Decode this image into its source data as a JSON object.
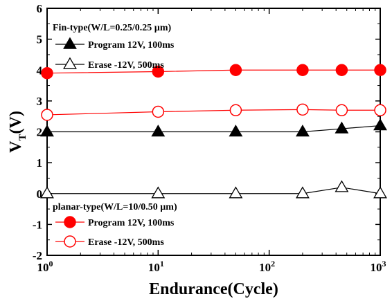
{
  "chart_data": {
    "type": "scatter",
    "xlabel": "Endurance(Cycle)",
    "ylabel_main": "V",
    "ylabel_sub": "T",
    "ylabel_tail": "(V)",
    "x_scale": "log",
    "xlim": [
      1,
      1000
    ],
    "ylim": [
      -2,
      6
    ],
    "x_ticks": [
      {
        "value": 1,
        "base": "10",
        "exp": "0"
      },
      {
        "value": 10,
        "base": "10",
        "exp": "1"
      },
      {
        "value": 100,
        "base": "10",
        "exp": "2"
      },
      {
        "value": 1000,
        "base": "10",
        "exp": "3"
      }
    ],
    "y_ticks": [
      -2,
      -1,
      0,
      1,
      2,
      3,
      4,
      5,
      6
    ],
    "grid": false,
    "legend_groups": [
      {
        "title": "Fin-type(W/L=0.25/0.25 µm)",
        "placement": "top-left"
      },
      {
        "title": "planar-type(W/L=10/0.50 µm)",
        "placement": "bottom-left"
      }
    ],
    "series": [
      {
        "name": "Program 12V, 100ms",
        "group": 0,
        "marker": "triangle",
        "filled": true,
        "color": "#000000",
        "x": [
          1,
          10,
          50,
          200,
          450,
          1000
        ],
        "y": [
          2.0,
          2.0,
          2.0,
          2.0,
          2.1,
          2.2
        ]
      },
      {
        "name": "Erase -12V, 500ms",
        "group": 0,
        "marker": "triangle",
        "filled": false,
        "color": "#000000",
        "x": [
          1,
          10,
          50,
          200,
          450,
          1000
        ],
        "y": [
          0.0,
          0.0,
          0.0,
          0.0,
          0.2,
          0.0
        ]
      },
      {
        "name": "Program 12V, 100ms",
        "group": 1,
        "marker": "circle",
        "filled": true,
        "color": "#ff0000",
        "x": [
          1,
          10,
          50,
          200,
          450,
          1000
        ],
        "y": [
          3.9,
          3.95,
          4.0,
          4.0,
          4.0,
          4.0
        ]
      },
      {
        "name": "Erase -12V, 500ms",
        "group": 1,
        "marker": "circle",
        "filled": false,
        "color": "#ff0000",
        "x": [
          1,
          10,
          50,
          200,
          450,
          1000
        ],
        "y": [
          2.55,
          2.65,
          2.7,
          2.72,
          2.7,
          2.7
        ]
      }
    ]
  }
}
